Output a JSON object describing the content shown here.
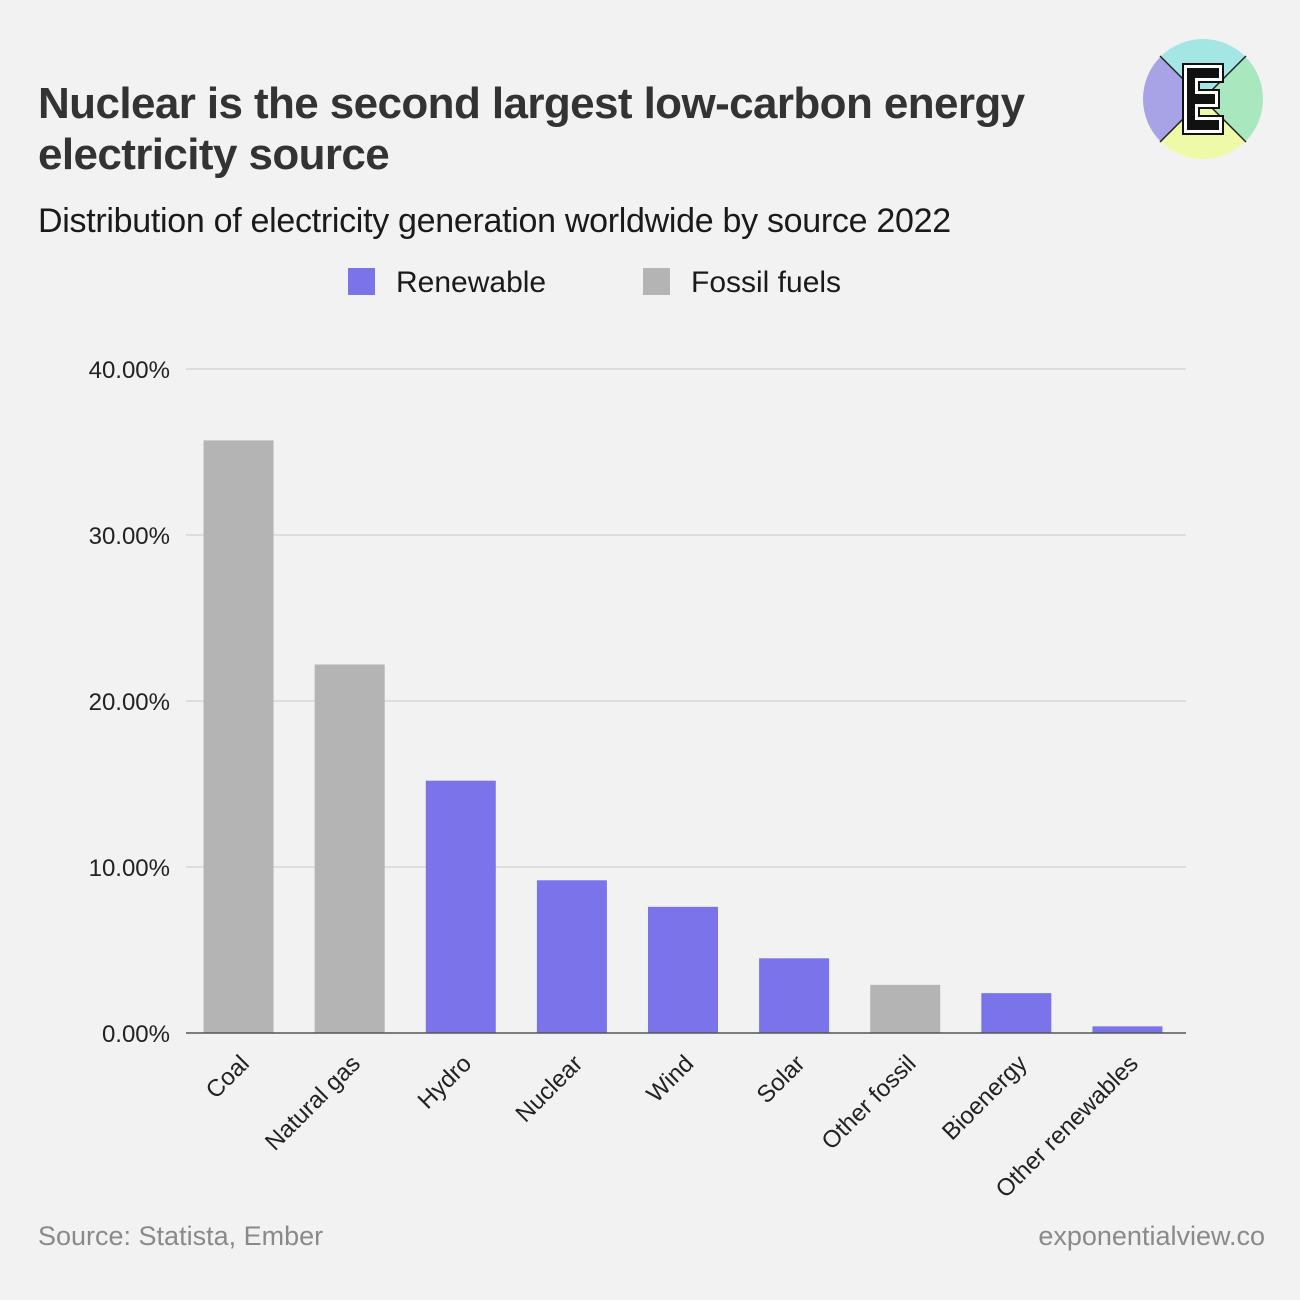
{
  "title": "Nuclear is the second largest low-carbon energy electricity source",
  "subtitle": "Distribution of electricity generation worldwide by source 2022",
  "source": "Source: Statista, Ember",
  "site": "exponentialview.co",
  "logo": {
    "letter": "E",
    "icon": "exponential-view-logo-icon"
  },
  "colors": {
    "renewable": "#7b73ea",
    "fossil": "#b3b4b3",
    "grid": "#d6d6d6",
    "axis": "#555555",
    "background": "#f2f2f2"
  },
  "chart_data": {
    "type": "bar",
    "categories": [
      "Coal",
      "Natural gas",
      "Hydro",
      "Nuclear",
      "Wind",
      "Solar",
      "Other fossil",
      "Bioenergy",
      "Other renewables"
    ],
    "values": [
      35.7,
      22.2,
      15.2,
      9.2,
      7.6,
      4.5,
      2.9,
      2.4,
      0.4
    ],
    "groups": [
      "Fossil fuels",
      "Fossil fuels",
      "Renewable",
      "Renewable",
      "Renewable",
      "Renewable",
      "Fossil fuels",
      "Renewable",
      "Renewable"
    ],
    "legend": [
      {
        "name": "Renewable",
        "color": "#7b73ea"
      },
      {
        "name": "Fossil fuels",
        "color": "#b3b4b3"
      }
    ],
    "legend_position": "top-center",
    "ylim": [
      0,
      40
    ],
    "yticks": [
      0,
      10,
      20,
      30,
      40
    ],
    "ytick_labels": [
      "0.00%",
      "10.00%",
      "20.00%",
      "30.00%",
      "40.00%"
    ],
    "grid": true,
    "xlabel": "",
    "ylabel": ""
  }
}
